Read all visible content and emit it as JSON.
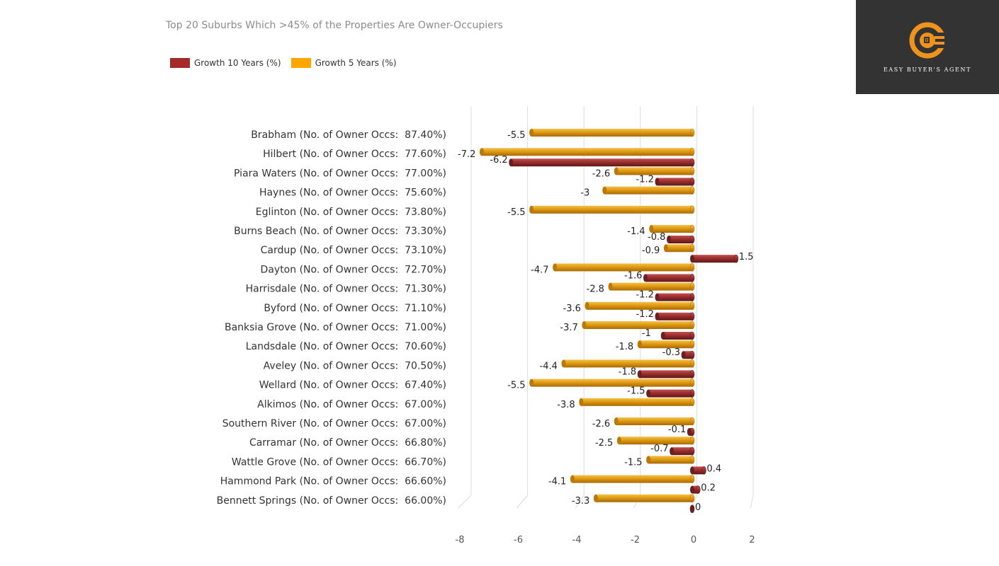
{
  "legend": {
    "series_10y_label": "Growth 10 Years (%)",
    "series_5y_label": "Growth 5 Years (%)"
  },
  "logo": {
    "text": "EASY BUYER'S AGENT",
    "icon": "power-plug-c-icon",
    "accent_color": "#f0931e"
  },
  "colors": {
    "growth_10y": "#a52a2a",
    "growth_5y": "#ffa500",
    "growth_10y_bar": "#8b2b2b",
    "growth_5y_bar": "#e39b12"
  },
  "chart_data": {
    "type": "bar",
    "orientation": "horizontal",
    "title": "Top 20 Suburbs Which >45% of the Properties Are Owner-Occupiers",
    "categories": [
      "Brabham (No. of Owner Occs:  87.40%)",
      "Hilbert (No. of Owner Occs:  77.60%)",
      "Piara Waters (No. of Owner Occs:  77.00%)",
      "Haynes (No. of Owner Occs:  75.60%)",
      "Eglinton (No. of Owner Occs:  73.80%)",
      "Burns Beach (No. of Owner Occs:  73.30%)",
      "Cardup (No. of Owner Occs:  73.10%)",
      "Dayton (No. of Owner Occs:  72.70%)",
      "Harrisdale (No. of Owner Occs:  71.30%)",
      "Byford (No. of Owner Occs:  71.10%)",
      "Banksia Grove (No. of Owner Occs:  71.00%)",
      "Landsdale (No. of Owner Occs:  70.60%)",
      "Aveley (No. of Owner Occs:  70.50%)",
      "Wellard (No. of Owner Occs:  67.40%)",
      "Alkimos (No. of Owner Occs:  67.00%)",
      "Southern River (No. of Owner Occs:  67.00%)",
      "Carramar (No. of Owner Occs:  66.80%)",
      "Wattle Grove (No. of Owner Occs:  66.70%)",
      "Hammond Park (No. of Owner Occs:  66.60%)",
      "Bennett Springs (No. of Owner Occs:  66.00%)"
    ],
    "series": [
      {
        "name": "Growth 10 Years (%)",
        "values": [
          null,
          -6.2,
          -1.2,
          null,
          null,
          -0.8,
          1.5,
          -1.6,
          -1.2,
          -1.2,
          -1,
          -0.3,
          -1.8,
          -1.5,
          null,
          -0.1,
          -0.7,
          0.4,
          0.2,
          0
        ]
      },
      {
        "name": "Growth 5 Years (%)",
        "values": [
          -5.5,
          -7.2,
          -2.6,
          -3,
          -5.5,
          -1.4,
          -0.9,
          -4.7,
          -2.8,
          -3.6,
          -3.7,
          -1.8,
          -4.4,
          -5.5,
          -3.8,
          -2.6,
          -2.5,
          -1.5,
          -4.1,
          -3.3
        ]
      }
    ],
    "x_ticks": [
      "-8",
      "-6",
      "-4",
      "-2",
      "0",
      "2"
    ],
    "xlim": [
      -8,
      2
    ],
    "grid": true,
    "legend_position": "top-left"
  }
}
